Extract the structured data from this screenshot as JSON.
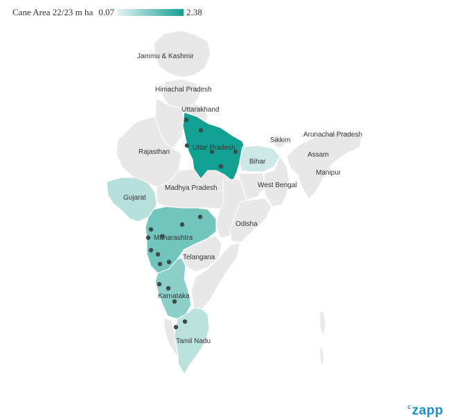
{
  "legend": {
    "title": "Cane Area 22/23 m ha",
    "min_label": "0.07",
    "max_label": "2.38",
    "min": 0.07,
    "max": 2.38,
    "color_min": "#e6f2f1",
    "color_max": "#12a092"
  },
  "colors": {
    "no_data": "#e8e8e8",
    "no_data_outline": "#ffffff",
    "dot": "#3d4b4b",
    "border": "#c9c9c9"
  },
  "states": [
    {
      "id": "jammu-kashmir",
      "label": "Jammu & Kashmir"
    },
    {
      "id": "himachal-pradesh",
      "label": "Himachal Pradesh"
    },
    {
      "id": "uttarakhand",
      "label": "Uttarakhand"
    },
    {
      "id": "rajasthan",
      "label": "Rajasthan"
    },
    {
      "id": "uttar-pradesh",
      "label": "Uttar Pradesh"
    },
    {
      "id": "sikkim",
      "label": "Sikkim"
    },
    {
      "id": "arunachal-pradesh",
      "label": "Arunachal Pradesh"
    },
    {
      "id": "assam",
      "label": "Assam"
    },
    {
      "id": "bihar",
      "label": "Bihar"
    },
    {
      "id": "manipur",
      "label": "Manipur"
    },
    {
      "id": "gujarat",
      "label": "Gujarat"
    },
    {
      "id": "madhya-pradesh",
      "label": "Madhya Pradesh"
    },
    {
      "id": "west-bengal",
      "label": "West Bengal"
    },
    {
      "id": "odisha",
      "label": "Odisha"
    },
    {
      "id": "maharashtra",
      "label": "Maharashtra"
    },
    {
      "id": "telangana",
      "label": "Telangana"
    },
    {
      "id": "karnataka",
      "label": "Karnataka"
    },
    {
      "id": "tamil-nadu",
      "label": "Tamil Nadu"
    }
  ],
  "brand": {
    "prefix": "c",
    "name": "zapp"
  }
}
